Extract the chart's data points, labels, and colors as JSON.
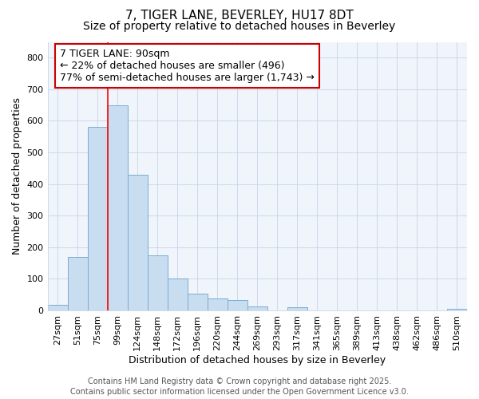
{
  "title_line1": "7, TIGER LANE, BEVERLEY, HU17 8DT",
  "title_line2": "Size of property relative to detached houses in Beverley",
  "xlabel": "Distribution of detached houses by size in Beverley",
  "ylabel": "Number of detached properties",
  "categories": [
    "27sqm",
    "51sqm",
    "75sqm",
    "99sqm",
    "124sqm",
    "148sqm",
    "172sqm",
    "196sqm",
    "220sqm",
    "244sqm",
    "269sqm",
    "293sqm",
    "317sqm",
    "341sqm",
    "365sqm",
    "389sqm",
    "413sqm",
    "438sqm",
    "462sqm",
    "486sqm",
    "510sqm"
  ],
  "values": [
    17,
    168,
    582,
    648,
    430,
    173,
    101,
    52,
    38,
    33,
    12,
    0,
    10,
    0,
    0,
    0,
    0,
    0,
    0,
    0,
    5
  ],
  "bar_color": "#c8ddf0",
  "bar_edge_color": "#7aadd4",
  "red_line_x": 2.5,
  "annotation_title": "7 TIGER LANE: 90sqm",
  "annotation_line2": "← 22% of detached houses are smaller (496)",
  "annotation_line3": "77% of semi-detached houses are larger (1,743) →",
  "annotation_box_color": "#ffffff",
  "annotation_box_edge_color": "#cc0000",
  "ylim": [
    0,
    850
  ],
  "yticks": [
    0,
    100,
    200,
    300,
    400,
    500,
    600,
    700,
    800
  ],
  "footer_line1": "Contains HM Land Registry data © Crown copyright and database right 2025.",
  "footer_line2": "Contains public sector information licensed under the Open Government Licence v3.0.",
  "bg_color": "#ffffff",
  "plot_bg_color": "#f0f4fb",
  "grid_color": "#c8d4e8",
  "title_fontsize": 11,
  "subtitle_fontsize": 10,
  "axis_label_fontsize": 9,
  "tick_fontsize": 8,
  "footer_fontsize": 7,
  "annotation_fontsize": 9
}
